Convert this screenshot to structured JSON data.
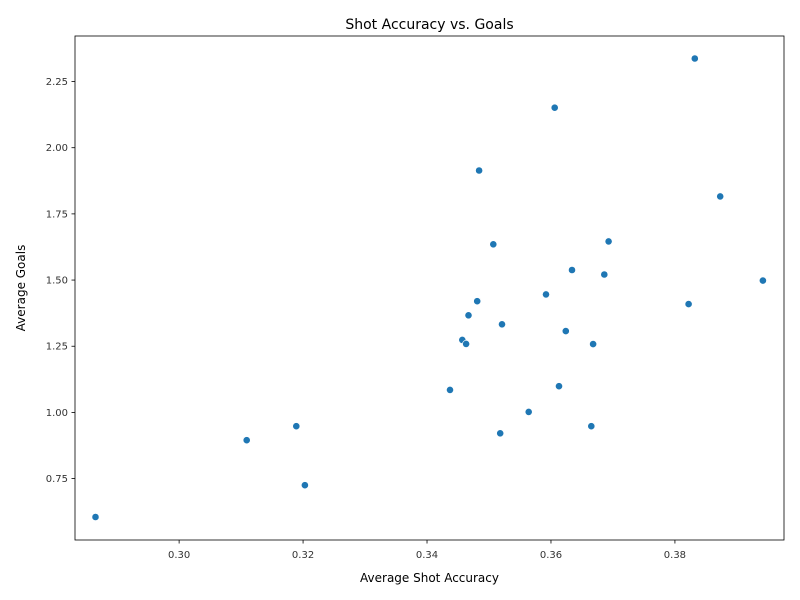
{
  "chart_data": {
    "type": "scatter",
    "title": "Shot Accuracy vs. Goals",
    "xlabel": "Average Shot Accuracy",
    "ylabel": "Average Goals",
    "xlim": [
      0.2832,
      0.3976
    ],
    "ylim": [
      0.518,
      2.422
    ],
    "xticks": [
      0.3,
      0.32,
      0.34,
      0.36,
      0.38
    ],
    "xtick_labels": [
      "0.30",
      "0.32",
      "0.34",
      "0.36",
      "0.38"
    ],
    "yticks": [
      0.75,
      1.0,
      1.25,
      1.5,
      1.75,
      2.0,
      2.25
    ],
    "ytick_labels": [
      "0.75",
      "1.00",
      "1.25",
      "1.50",
      "1.75",
      "2.00",
      "2.25"
    ],
    "grid": false,
    "color": "#1f77b4",
    "points": [
      {
        "x": 0.2865,
        "y": 0.605
      },
      {
        "x": 0.3109,
        "y": 0.895
      },
      {
        "x": 0.3189,
        "y": 0.948
      },
      {
        "x": 0.3203,
        "y": 0.725
      },
      {
        "x": 0.3437,
        "y": 1.085
      },
      {
        "x": 0.3457,
        "y": 1.274
      },
      {
        "x": 0.3463,
        "y": 1.259
      },
      {
        "x": 0.3467,
        "y": 1.367
      },
      {
        "x": 0.3481,
        "y": 1.42
      },
      {
        "x": 0.3484,
        "y": 1.914
      },
      {
        "x": 0.3507,
        "y": 1.635
      },
      {
        "x": 0.3518,
        "y": 0.921
      },
      {
        "x": 0.3521,
        "y": 1.333
      },
      {
        "x": 0.3564,
        "y": 1.002
      },
      {
        "x": 0.3592,
        "y": 1.446
      },
      {
        "x": 0.3606,
        "y": 2.151
      },
      {
        "x": 0.3613,
        "y": 1.099
      },
      {
        "x": 0.3624,
        "y": 1.307
      },
      {
        "x": 0.3634,
        "y": 1.538
      },
      {
        "x": 0.3665,
        "y": 0.948
      },
      {
        "x": 0.3668,
        "y": 1.258
      },
      {
        "x": 0.3686,
        "y": 1.521
      },
      {
        "x": 0.3693,
        "y": 1.646
      },
      {
        "x": 0.3822,
        "y": 1.409
      },
      {
        "x": 0.3832,
        "y": 2.337
      },
      {
        "x": 0.3873,
        "y": 1.816
      },
      {
        "x": 0.3942,
        "y": 1.498
      }
    ]
  }
}
